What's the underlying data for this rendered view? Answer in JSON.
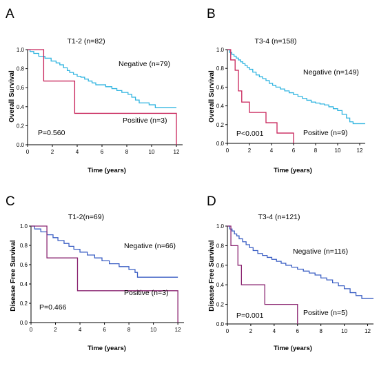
{
  "chart_data": [
    {
      "panel": "A",
      "type": "line",
      "title": "T1-2 (n=82)",
      "xlabel": "Time (years)",
      "ylabel": "Overall Survival",
      "xlim": [
        0,
        12.5
      ],
      "ylim": [
        0,
        1.0
      ],
      "xticks": [
        "0",
        "2",
        "4",
        "6",
        "8",
        "10",
        "12"
      ],
      "yticks": [
        "0.0",
        "0.2",
        "0.4",
        "0.6",
        "0.8",
        "1.0"
      ],
      "p_value": "P=0.560",
      "series": [
        {
          "name": "Negative (n=79)",
          "color": "#2fb4e0",
          "step": [
            [
              0,
              1.0
            ],
            [
              0.2,
              0.98
            ],
            [
              0.5,
              0.96
            ],
            [
              0.9,
              0.93
            ],
            [
              1.4,
              0.91
            ],
            [
              1.9,
              0.88
            ],
            [
              2.3,
              0.86
            ],
            [
              2.6,
              0.84
            ],
            [
              2.9,
              0.81
            ],
            [
              3.2,
              0.78
            ],
            [
              3.4,
              0.76
            ],
            [
              3.7,
              0.74
            ],
            [
              4.0,
              0.72
            ],
            [
              4.3,
              0.71
            ],
            [
              4.6,
              0.69
            ],
            [
              4.9,
              0.67
            ],
            [
              5.2,
              0.65
            ],
            [
              5.5,
              0.63
            ],
            [
              6.0,
              0.63
            ],
            [
              6.3,
              0.61
            ],
            [
              6.8,
              0.59
            ],
            [
              7.2,
              0.57
            ],
            [
              7.6,
              0.55
            ],
            [
              8.1,
              0.53
            ],
            [
              8.4,
              0.5
            ],
            [
              8.7,
              0.47
            ],
            [
              9.0,
              0.44
            ],
            [
              9.4,
              0.44
            ],
            [
              9.8,
              0.42
            ],
            [
              10.3,
              0.39
            ],
            [
              12.0,
              0.39
            ]
          ]
        },
        {
          "name": "Positive (n=3)",
          "color": "#c8245a",
          "step": [
            [
              0,
              1.0
            ],
            [
              1.3,
              0.67
            ],
            [
              3.8,
              0.33
            ],
            [
              12.0,
              0.33
            ],
            [
              12.0,
              0.0
            ]
          ]
        }
      ]
    },
    {
      "panel": "B",
      "type": "line",
      "title": "T3-4 (n=158)",
      "xlabel": "Time (years)",
      "ylabel": "Overall Survival",
      "xlim": [
        0,
        12.5
      ],
      "ylim": [
        0,
        1.0
      ],
      "xticks": [
        "0",
        "2",
        "4",
        "6",
        "8",
        "10",
        "12"
      ],
      "yticks": [
        "0.0",
        "0.2",
        "0.4",
        "0.6",
        "0.8",
        "1.0"
      ],
      "p_value": "P<0.001",
      "series": [
        {
          "name": "Negative (n=149)",
          "color": "#2fb4e0",
          "step": [
            [
              0,
              1.0
            ],
            [
              0.2,
              0.97
            ],
            [
              0.4,
              0.95
            ],
            [
              0.6,
              0.93
            ],
            [
              0.8,
              0.91
            ],
            [
              1.0,
              0.89
            ],
            [
              1.2,
              0.87
            ],
            [
              1.4,
              0.85
            ],
            [
              1.6,
              0.83
            ],
            [
              1.8,
              0.81
            ],
            [
              2.0,
              0.79
            ],
            [
              2.3,
              0.76
            ],
            [
              2.6,
              0.73
            ],
            [
              2.9,
              0.71
            ],
            [
              3.2,
              0.69
            ],
            [
              3.5,
              0.67
            ],
            [
              3.8,
              0.64
            ],
            [
              4.1,
              0.62
            ],
            [
              4.4,
              0.6
            ],
            [
              4.8,
              0.58
            ],
            [
              5.2,
              0.56
            ],
            [
              5.6,
              0.54
            ],
            [
              6.0,
              0.52
            ],
            [
              6.4,
              0.5
            ],
            [
              6.8,
              0.48
            ],
            [
              7.2,
              0.46
            ],
            [
              7.6,
              0.44
            ],
            [
              8.0,
              0.43
            ],
            [
              8.4,
              0.42
            ],
            [
              8.8,
              0.41
            ],
            [
              9.2,
              0.39
            ],
            [
              9.6,
              0.37
            ],
            [
              10.0,
              0.35
            ],
            [
              10.4,
              0.31
            ],
            [
              10.8,
              0.27
            ],
            [
              11.1,
              0.23
            ],
            [
              11.4,
              0.21
            ],
            [
              12.5,
              0.21
            ]
          ]
        },
        {
          "name": "Positive (n=9)",
          "color": "#c8245a",
          "step": [
            [
              0,
              1.0
            ],
            [
              0.3,
              0.89
            ],
            [
              0.7,
              0.78
            ],
            [
              1.0,
              0.56
            ],
            [
              1.3,
              0.44
            ],
            [
              2.0,
              0.33
            ],
            [
              3.5,
              0.22
            ],
            [
              4.5,
              0.11
            ],
            [
              6.0,
              0.11
            ],
            [
              6.0,
              0.0
            ]
          ]
        }
      ]
    },
    {
      "panel": "C",
      "type": "line",
      "title": "T1-2(n=69)",
      "xlabel": "Time (years)",
      "ylabel": "Disease Free Survival",
      "xlim": [
        0,
        12.5
      ],
      "ylim": [
        0,
        1.0
      ],
      "xticks": [
        "0",
        "2",
        "4",
        "6",
        "8",
        "10",
        "12"
      ],
      "yticks": [
        "0.0",
        "0.2",
        "0.4",
        "0.6",
        "0.8",
        "1.0"
      ],
      "p_value": "P=0.466",
      "series": [
        {
          "name": "Negative (n=66)",
          "color": "#3b5fc4",
          "step": [
            [
              0,
              1.0
            ],
            [
              0.3,
              0.97
            ],
            [
              0.8,
              0.94
            ],
            [
              1.3,
              0.91
            ],
            [
              1.8,
              0.88
            ],
            [
              2.2,
              0.85
            ],
            [
              2.7,
              0.82
            ],
            [
              3.1,
              0.79
            ],
            [
              3.5,
              0.76
            ],
            [
              4.0,
              0.73
            ],
            [
              4.6,
              0.7
            ],
            [
              5.2,
              0.67
            ],
            [
              5.8,
              0.64
            ],
            [
              6.4,
              0.61
            ],
            [
              7.2,
              0.58
            ],
            [
              8.0,
              0.55
            ],
            [
              8.5,
              0.52
            ],
            [
              8.7,
              0.47
            ],
            [
              12.0,
              0.47
            ]
          ]
        },
        {
          "name": "Positive (n=3)",
          "color": "#8a2470",
          "step": [
            [
              0,
              1.0
            ],
            [
              1.3,
              0.67
            ],
            [
              3.8,
              0.33
            ],
            [
              12.0,
              0.33
            ],
            [
              12.0,
              0.0
            ]
          ]
        }
      ]
    },
    {
      "panel": "D",
      "type": "line",
      "title": "T3-4 (n=121)",
      "xlabel": "Time (years)",
      "ylabel": "Disease Free Survival",
      "xlim": [
        0,
        12.5
      ],
      "ylim": [
        0,
        1.0
      ],
      "xticks": [
        "0",
        "2",
        "4",
        "6",
        "8",
        "10",
        "12"
      ],
      "yticks": [
        "0.0",
        "0.2",
        "0.4",
        "0.6",
        "0.8",
        "1.0"
      ],
      "p_value": "P=0.001",
      "series": [
        {
          "name": "Negative (n=116)",
          "color": "#3b5fc4",
          "step": [
            [
              0,
              1.0
            ],
            [
              0.2,
              0.97
            ],
            [
              0.4,
              0.95
            ],
            [
              0.6,
              0.92
            ],
            [
              0.8,
              0.9
            ],
            [
              1.0,
              0.87
            ],
            [
              1.3,
              0.84
            ],
            [
              1.6,
              0.81
            ],
            [
              1.9,
              0.78
            ],
            [
              2.2,
              0.75
            ],
            [
              2.6,
              0.72
            ],
            [
              3.0,
              0.7
            ],
            [
              3.4,
              0.68
            ],
            [
              3.8,
              0.66
            ],
            [
              4.2,
              0.64
            ],
            [
              4.6,
              0.62
            ],
            [
              5.0,
              0.6
            ],
            [
              5.5,
              0.58
            ],
            [
              6.0,
              0.56
            ],
            [
              6.5,
              0.54
            ],
            [
              7.0,
              0.52
            ],
            [
              7.5,
              0.5
            ],
            [
              8.0,
              0.47
            ],
            [
              8.5,
              0.45
            ],
            [
              9.0,
              0.42
            ],
            [
              9.5,
              0.39
            ],
            [
              10.0,
              0.36
            ],
            [
              10.5,
              0.32
            ],
            [
              11.0,
              0.29
            ],
            [
              11.5,
              0.26
            ],
            [
              12.5,
              0.26
            ]
          ]
        },
        {
          "name": "Positive (n=5)",
          "color": "#8a2470",
          "step": [
            [
              0,
              1.0
            ],
            [
              0.3,
              0.8
            ],
            [
              0.9,
              0.6
            ],
            [
              1.2,
              0.4
            ],
            [
              3.2,
              0.2
            ],
            [
              6.0,
              0.2
            ],
            [
              6.0,
              0.0
            ]
          ]
        }
      ]
    }
  ]
}
